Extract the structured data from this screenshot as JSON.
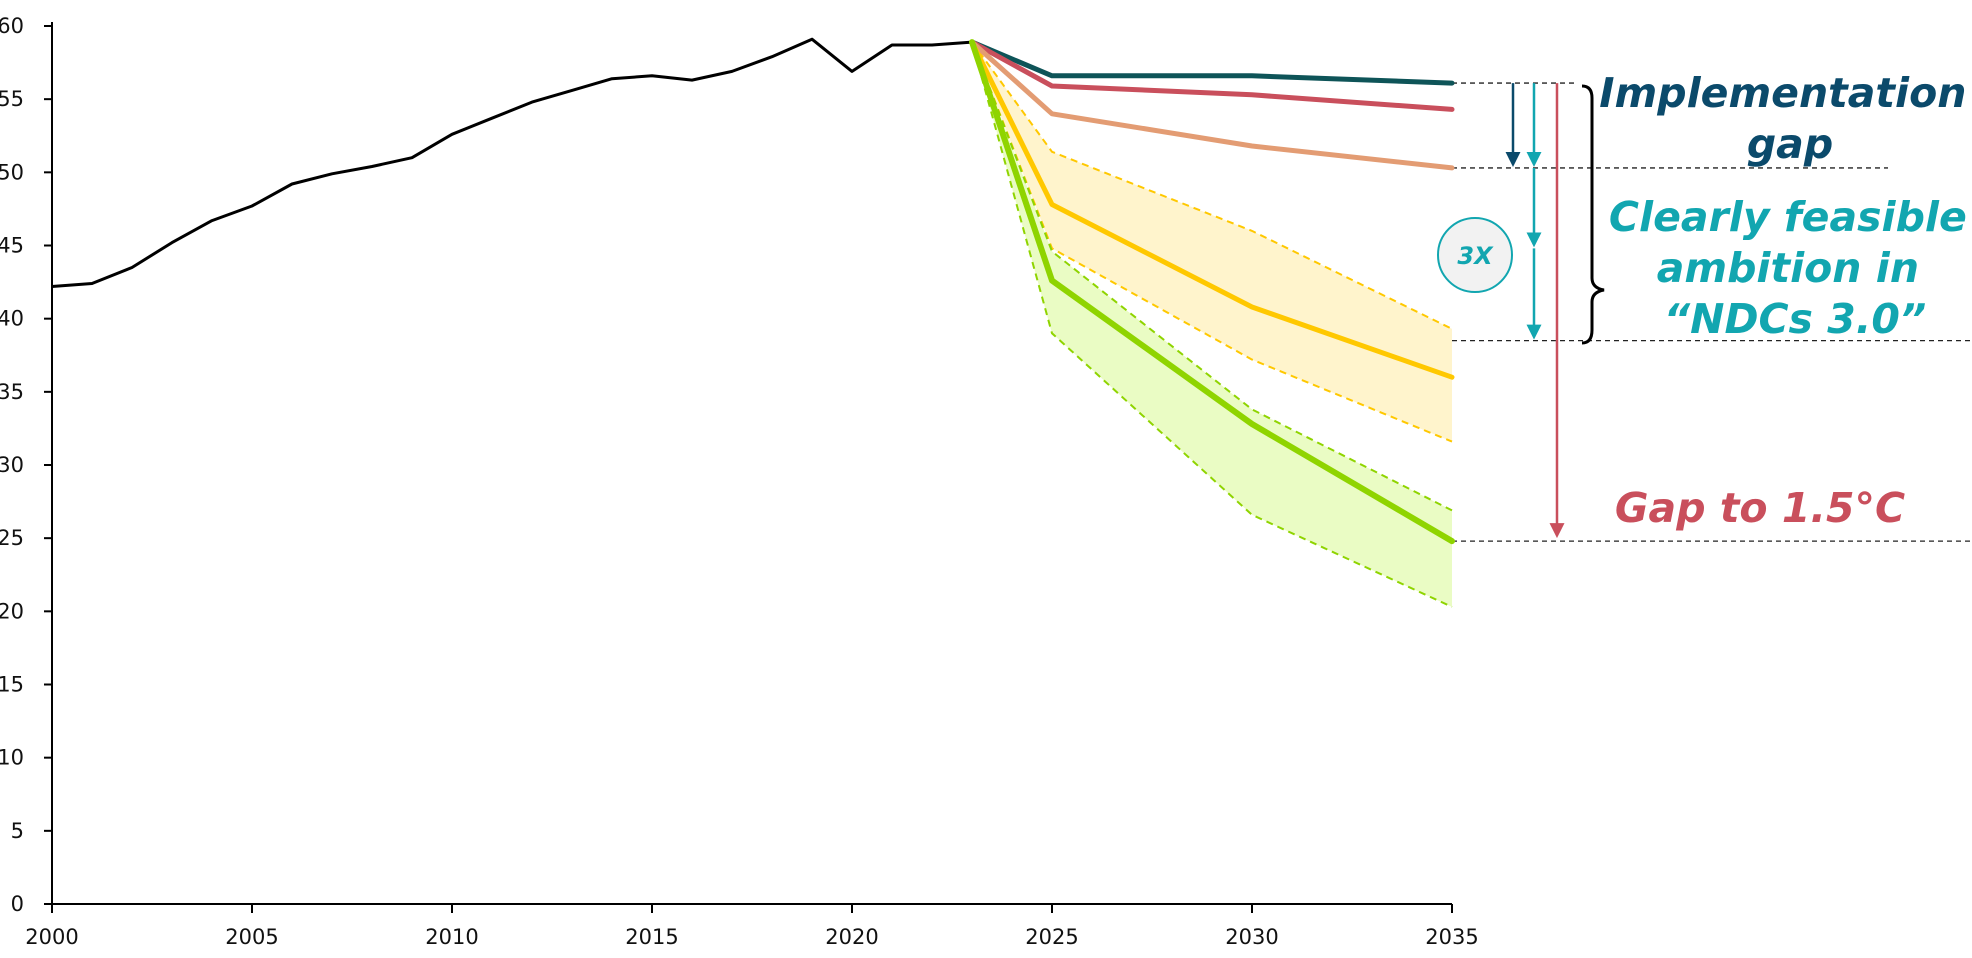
{
  "chart_data": {
    "type": "line",
    "x_ticks": [
      "2000",
      "2005",
      "2010",
      "2015",
      "2020",
      "2025",
      "2030",
      "2035"
    ],
    "y_ticks": [
      "0",
      "5",
      "10",
      "15",
      "20",
      "25",
      "30",
      "35",
      "40",
      "45",
      "50",
      "55",
      "60"
    ],
    "xlim": [
      2000,
      2035
    ],
    "ylim": [
      0,
      60
    ],
    "grid": false,
    "historical": {
      "color": "#000000",
      "points": [
        [
          2000,
          42.2
        ],
        [
          2001,
          42.4
        ],
        [
          2002,
          43.5
        ],
        [
          2003,
          45.2
        ],
        [
          2004,
          46.7
        ],
        [
          2005,
          47.7
        ],
        [
          2006,
          49.2
        ],
        [
          2007,
          49.9
        ],
        [
          2008,
          50.4
        ],
        [
          2009,
          51.0
        ],
        [
          2010,
          52.6
        ],
        [
          2011,
          53.7
        ],
        [
          2012,
          54.8
        ],
        [
          2013,
          55.6
        ],
        [
          2014,
          56.4
        ],
        [
          2015,
          56.6
        ],
        [
          2016,
          56.3
        ],
        [
          2017,
          56.9
        ],
        [
          2018,
          57.9
        ],
        [
          2019,
          59.1
        ],
        [
          2020,
          56.9
        ],
        [
          2021,
          58.7
        ],
        [
          2022,
          58.7
        ],
        [
          2023,
          58.9
        ]
      ]
    },
    "series": [
      {
        "color": "#0e5458",
        "width": 5,
        "points": [
          [
            2023,
            58.9
          ],
          [
            2025,
            56.6
          ],
          [
            2030,
            56.6
          ],
          [
            2035,
            56.1
          ]
        ]
      },
      {
        "color": "#c94f5c",
        "width": 5,
        "points": [
          [
            2023,
            58.9
          ],
          [
            2025,
            55.9
          ],
          [
            2030,
            55.3
          ],
          [
            2035,
            54.3
          ]
        ]
      },
      {
        "color": "#e39c73",
        "width": 5,
        "points": [
          [
            2023,
            58.9
          ],
          [
            2025,
            54.0
          ],
          [
            2030,
            51.8
          ],
          [
            2035,
            50.3
          ]
        ]
      },
      {
        "color": "#ffc800",
        "width": 5,
        "points": [
          [
            2023,
            58.9
          ],
          [
            2025,
            47.8
          ],
          [
            2030,
            40.8
          ],
          [
            2035,
            36.0
          ]
        ]
      },
      {
        "color": "#8fd400",
        "width": 6,
        "points": [
          [
            2023,
            58.9
          ],
          [
            2025,
            42.6
          ],
          [
            2030,
            32.8
          ],
          [
            2035,
            24.8
          ]
        ]
      }
    ],
    "bands": [
      {
        "fill": "#fff4cc",
        "stroke": "#ffc800",
        "upper": [
          [
            2023,
            58.9
          ],
          [
            2025,
            51.4
          ],
          [
            2030,
            46.0
          ],
          [
            2035,
            39.3
          ]
        ],
        "lower": [
          [
            2023,
            58.9
          ],
          [
            2025,
            44.8
          ],
          [
            2030,
            37.2
          ],
          [
            2035,
            31.6
          ]
        ]
      },
      {
        "fill": "#eafcc4",
        "stroke": "#8fd400",
        "upper": [
          [
            2023,
            58.9
          ],
          [
            2025,
            44.6
          ],
          [
            2030,
            33.8
          ],
          [
            2035,
            26.9
          ]
        ],
        "lower": [
          [
            2023,
            58.9
          ],
          [
            2025,
            39.0
          ],
          [
            2030,
            26.6
          ],
          [
            2035,
            20.3
          ]
        ]
      }
    ],
    "reference_lines": [
      56.1,
      50.3,
      38.5,
      24.8
    ],
    "annotations": {
      "implementation_gap": {
        "lines": [
          "Implementation",
          "gap"
        ],
        "color": "#0b4a6b"
      },
      "feasible": {
        "lines": [
          "Clearly feasible",
          "ambition in",
          "“NDCs 3.0”"
        ],
        "color": "#12a6b0"
      },
      "gap_15": {
        "text": "Gap to 1.5°C",
        "color": "#c94f5c"
      },
      "badge": {
        "text": "3X",
        "color": "#12a6b0"
      }
    }
  }
}
